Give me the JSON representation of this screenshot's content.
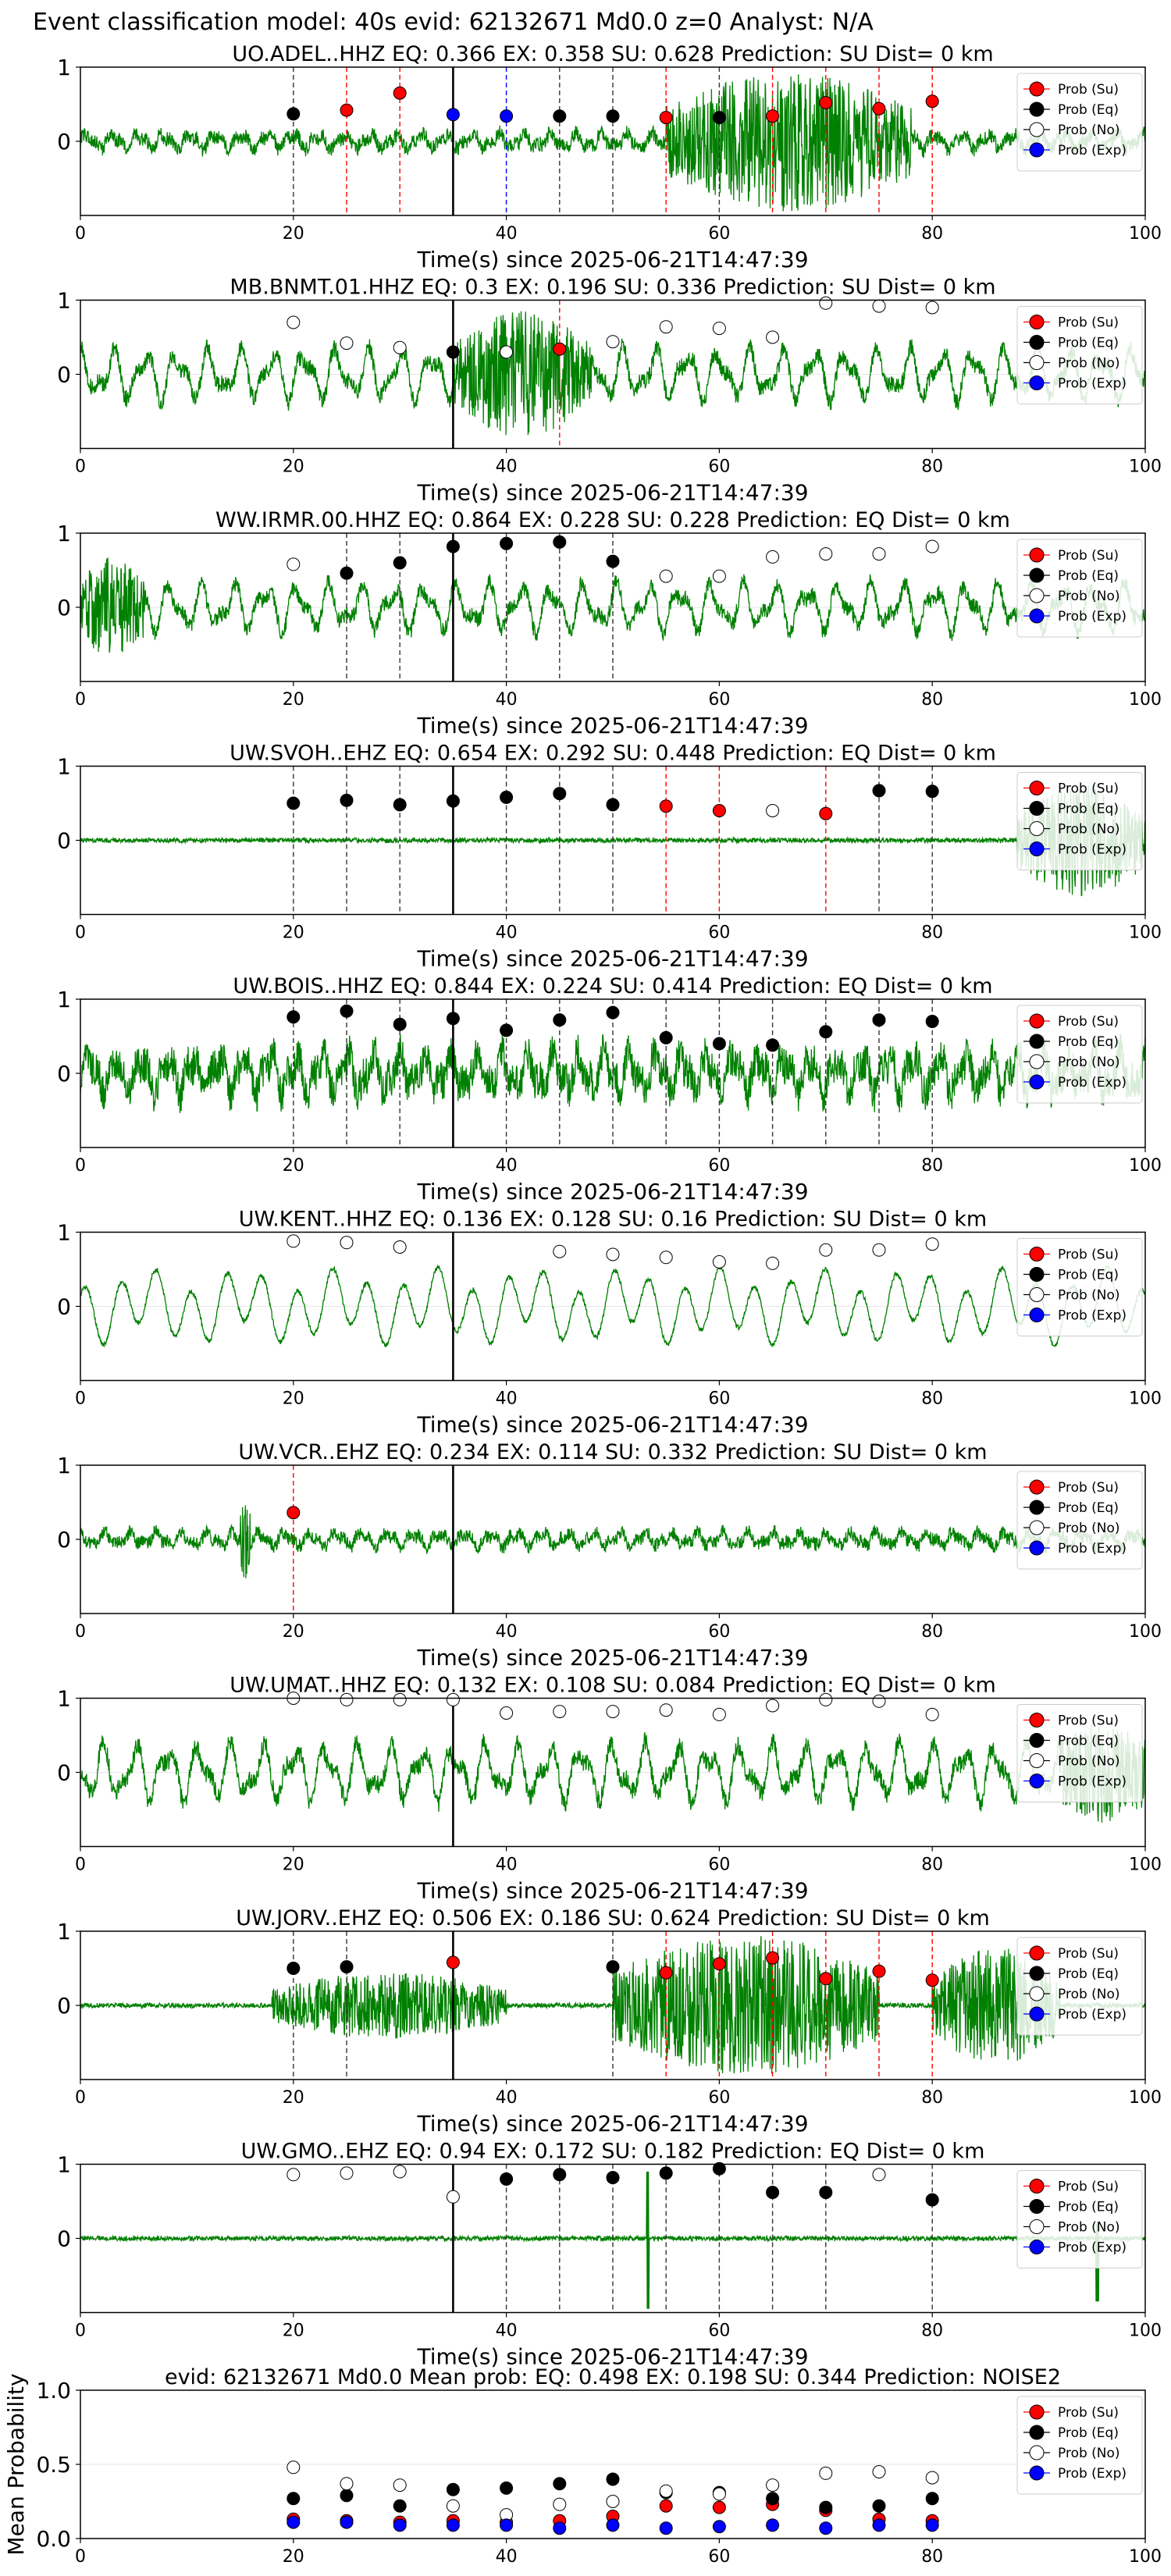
{
  "figure": {
    "suptitle": "Event classification model: 40s evid: 62132671 Md0.0 z=0 Analyst: N/A",
    "xlabel": "Time(s) since 2025-06-21T14:47:39",
    "legend": [
      "Prob (Su)",
      "Prob (Eq)",
      "Prob (No)",
      "Prob (Exp)"
    ],
    "colors": {
      "su": "#ff0000",
      "eq": "#000000",
      "no": "#ffffff",
      "exp": "#0000ff",
      "trace": "#008000",
      "grid": "#e6e6e6"
    },
    "markers": [
      "circle",
      "circle",
      "open-circle",
      "circle"
    ]
  },
  "chart_data": [
    {
      "type": "line",
      "title": "UO.ADEL..HHZ   EQ: 0.366  EX: 0.358  SU: 0.628   Prediction: SU    Dist= 0 km",
      "xlim": [
        0,
        100
      ],
      "ylim": [
        -1,
        1
      ],
      "x_ticks": [
        "0",
        "20",
        "40",
        "60",
        "80",
        "100"
      ],
      "y_ticks": [
        "1",
        "0"
      ],
      "trace": {
        "style": "spiky",
        "amp": 0.22,
        "burst": [
          [
            55,
            78,
            0.95
          ]
        ]
      },
      "pick_line_x": 35,
      "windows": [
        {
          "x": 20,
          "cls": "eq",
          "p": 0.37
        },
        {
          "x": 25,
          "cls": "su",
          "p": 0.42
        },
        {
          "x": 30,
          "cls": "su",
          "p": 0.65
        },
        {
          "x": 35,
          "cls": "exp",
          "p": 0.36
        },
        {
          "x": 40,
          "cls": "exp",
          "p": 0.34
        },
        {
          "x": 45,
          "cls": "eq",
          "p": 0.34
        },
        {
          "x": 50,
          "cls": "eq",
          "p": 0.34
        },
        {
          "x": 55,
          "cls": "su",
          "p": 0.32
        },
        {
          "x": 60,
          "cls": "eq",
          "p": 0.32
        },
        {
          "x": 65,
          "cls": "su",
          "p": 0.34
        },
        {
          "x": 70,
          "cls": "su",
          "p": 0.52
        },
        {
          "x": 75,
          "cls": "su",
          "p": 0.44
        },
        {
          "x": 80,
          "cls": "su",
          "p": 0.54
        }
      ]
    },
    {
      "type": "line",
      "title": "MB.BNMT.01.HHZ   EQ: 0.3  EX: 0.196  SU: 0.336   Prediction: SU    Dist= 0 km",
      "xlim": [
        0,
        100
      ],
      "ylim": [
        -1,
        1
      ],
      "x_ticks": [
        "0",
        "20",
        "40",
        "60",
        "80",
        "100"
      ],
      "y_ticks": [
        "1",
        "0"
      ],
      "trace": {
        "style": "wave",
        "amp": 0.45,
        "burst": [
          [
            35,
            48,
            0.85
          ]
        ]
      },
      "pick_line_x": 35,
      "windows": [
        {
          "x": 20,
          "cls": "no",
          "p": 0.7
        },
        {
          "x": 25,
          "cls": "no",
          "p": 0.42
        },
        {
          "x": 30,
          "cls": "no",
          "p": 0.36
        },
        {
          "x": 35,
          "cls": "eq",
          "p": 0.3
        },
        {
          "x": 40,
          "cls": "no",
          "p": 0.3
        },
        {
          "x": 45,
          "cls": "su",
          "p": 0.34
        },
        {
          "x": 50,
          "cls": "no",
          "p": 0.44
        },
        {
          "x": 55,
          "cls": "no",
          "p": 0.64
        },
        {
          "x": 60,
          "cls": "no",
          "p": 0.62
        },
        {
          "x": 65,
          "cls": "no",
          "p": 0.5
        },
        {
          "x": 70,
          "cls": "no",
          "p": 0.96
        },
        {
          "x": 75,
          "cls": "no",
          "p": 0.92
        },
        {
          "x": 80,
          "cls": "no",
          "p": 0.9
        }
      ]
    },
    {
      "type": "line",
      "title": "WW.IRMR.00.HHZ   EQ: 0.864  EX: 0.228  SU: 0.228   Prediction: EQ    Dist= 0 km",
      "xlim": [
        0,
        100
      ],
      "ylim": [
        -1,
        1
      ],
      "x_ticks": [
        "0",
        "20",
        "40",
        "60",
        "80",
        "100"
      ],
      "y_ticks": [
        "1",
        "0"
      ],
      "trace": {
        "style": "wave",
        "amp": 0.42,
        "burst": [
          [
            0,
            6,
            0.7
          ]
        ]
      },
      "pick_line_x": 35,
      "windows": [
        {
          "x": 20,
          "cls": "no",
          "p": 0.58
        },
        {
          "x": 25,
          "cls": "eq",
          "p": 0.46
        },
        {
          "x": 30,
          "cls": "eq",
          "p": 0.6
        },
        {
          "x": 35,
          "cls": "eq",
          "p": 0.82
        },
        {
          "x": 40,
          "cls": "eq",
          "p": 0.86
        },
        {
          "x": 45,
          "cls": "eq",
          "p": 0.88
        },
        {
          "x": 50,
          "cls": "eq",
          "p": 0.62
        },
        {
          "x": 55,
          "cls": "no",
          "p": 0.42
        },
        {
          "x": 60,
          "cls": "no",
          "p": 0.42
        },
        {
          "x": 65,
          "cls": "no",
          "p": 0.68
        },
        {
          "x": 70,
          "cls": "no",
          "p": 0.72
        },
        {
          "x": 75,
          "cls": "no",
          "p": 0.72
        },
        {
          "x": 80,
          "cls": "no",
          "p": 0.82
        }
      ]
    },
    {
      "type": "line",
      "title": "UW.SVOH..EHZ   EQ: 0.654  EX: 0.292  SU: 0.448   Prediction: EQ    Dist= 0 km",
      "xlim": [
        0,
        100
      ],
      "ylim": [
        -1,
        1
      ],
      "x_ticks": [
        "0",
        "20",
        "40",
        "60",
        "80",
        "100"
      ],
      "y_ticks": [
        "1",
        "0"
      ],
      "trace": {
        "style": "flat",
        "amp": 0.04,
        "burst": [
          [
            88,
            100,
            0.75
          ]
        ]
      },
      "pick_line_x": 35,
      "windows": [
        {
          "x": 20,
          "cls": "eq",
          "p": 0.5
        },
        {
          "x": 25,
          "cls": "eq",
          "p": 0.54
        },
        {
          "x": 30,
          "cls": "eq",
          "p": 0.48
        },
        {
          "x": 35,
          "cls": "eq",
          "p": 0.53
        },
        {
          "x": 40,
          "cls": "eq",
          "p": 0.58
        },
        {
          "x": 45,
          "cls": "eq",
          "p": 0.63
        },
        {
          "x": 50,
          "cls": "eq",
          "p": 0.48
        },
        {
          "x": 55,
          "cls": "su",
          "p": 0.46
        },
        {
          "x": 60,
          "cls": "su",
          "p": 0.4
        },
        {
          "x": 65,
          "cls": "no",
          "p": 0.4
        },
        {
          "x": 70,
          "cls": "su",
          "p": 0.36
        },
        {
          "x": 75,
          "cls": "eq",
          "p": 0.67
        },
        {
          "x": 80,
          "cls": "eq",
          "p": 0.66
        }
      ]
    },
    {
      "type": "line",
      "title": "UW.BOIS..HHZ   EQ: 0.844  EX: 0.224  SU: 0.414   Prediction: EQ    Dist= 0 km",
      "xlim": [
        0,
        100
      ],
      "ylim": [
        -1,
        1
      ],
      "x_ticks": [
        "0",
        "20",
        "40",
        "60",
        "80",
        "100"
      ],
      "y_ticks": [
        "1",
        "0"
      ],
      "trace": {
        "style": "spiky",
        "amp": 0.55,
        "burst": []
      },
      "pick_line_x": 35,
      "windows": [
        {
          "x": 20,
          "cls": "eq",
          "p": 0.76
        },
        {
          "x": 25,
          "cls": "eq",
          "p": 0.84
        },
        {
          "x": 30,
          "cls": "eq",
          "p": 0.66
        },
        {
          "x": 35,
          "cls": "eq",
          "p": 0.74
        },
        {
          "x": 40,
          "cls": "eq",
          "p": 0.58
        },
        {
          "x": 45,
          "cls": "eq",
          "p": 0.72
        },
        {
          "x": 50,
          "cls": "eq",
          "p": 0.82
        },
        {
          "x": 55,
          "cls": "eq",
          "p": 0.48
        },
        {
          "x": 60,
          "cls": "eq",
          "p": 0.4
        },
        {
          "x": 65,
          "cls": "eq",
          "p": 0.38
        },
        {
          "x": 70,
          "cls": "eq",
          "p": 0.56
        },
        {
          "x": 75,
          "cls": "eq",
          "p": 0.72
        },
        {
          "x": 80,
          "cls": "eq",
          "p": 0.7
        }
      ]
    },
    {
      "type": "line",
      "title": "UW.KENT..HHZ   EQ: 0.136  EX: 0.128  SU: 0.16   Prediction: SU    Dist= 0 km",
      "xlim": [
        0,
        100
      ],
      "ylim": [
        -1,
        1
      ],
      "x_ticks": [
        "0",
        "20",
        "40",
        "60",
        "80",
        "100"
      ],
      "y_ticks": [
        "1",
        "0"
      ],
      "trace": {
        "style": "smooth",
        "amp": 0.55,
        "burst": []
      },
      "pick_line_x": 35,
      "windows": [
        {
          "x": 20,
          "cls": "no",
          "p": 0.88
        },
        {
          "x": 25,
          "cls": "no",
          "p": 0.86
        },
        {
          "x": 30,
          "cls": "no",
          "p": 0.8
        },
        {
          "x": 45,
          "cls": "no",
          "p": 0.74
        },
        {
          "x": 50,
          "cls": "no",
          "p": 0.7
        },
        {
          "x": 55,
          "cls": "no",
          "p": 0.66
        },
        {
          "x": 60,
          "cls": "no",
          "p": 0.6
        },
        {
          "x": 65,
          "cls": "no",
          "p": 0.58
        },
        {
          "x": 70,
          "cls": "no",
          "p": 0.76
        },
        {
          "x": 75,
          "cls": "no",
          "p": 0.76
        },
        {
          "x": 80,
          "cls": "no",
          "p": 0.84
        }
      ]
    },
    {
      "type": "line",
      "title": "UW.VCR..EHZ   EQ: 0.234  EX: 0.114  SU: 0.332   Prediction: SU    Dist= 0 km",
      "xlim": [
        0,
        100
      ],
      "ylim": [
        -1,
        1
      ],
      "x_ticks": [
        "0",
        "20",
        "40",
        "60",
        "80",
        "100"
      ],
      "y_ticks": [
        "1",
        "0"
      ],
      "trace": {
        "style": "spiky",
        "amp": 0.2,
        "burst": [
          [
            15,
            16,
            0.6
          ]
        ]
      },
      "pick_line_x": 35,
      "windows": [
        {
          "x": 20,
          "cls": "su",
          "p": 0.36
        }
      ]
    },
    {
      "type": "line",
      "title": "UW.UMAT..HHZ   EQ: 0.132  EX: 0.108  SU: 0.084   Prediction: EQ    Dist= 0 km",
      "xlim": [
        0,
        100
      ],
      "ylim": [
        -1,
        1
      ],
      "x_ticks": [
        "0",
        "20",
        "40",
        "60",
        "80",
        "100"
      ],
      "y_ticks": [
        "1",
        "0"
      ],
      "trace": {
        "style": "wave",
        "amp": 0.5,
        "burst": [
          [
            92,
            100,
            0.7
          ]
        ]
      },
      "pick_line_x": 35,
      "windows": [
        {
          "x": 20,
          "cls": "no",
          "p": 1.0
        },
        {
          "x": 25,
          "cls": "no",
          "p": 0.98
        },
        {
          "x": 30,
          "cls": "no",
          "p": 0.98
        },
        {
          "x": 35,
          "cls": "no",
          "p": 0.98
        },
        {
          "x": 40,
          "cls": "no",
          "p": 0.8
        },
        {
          "x": 45,
          "cls": "no",
          "p": 0.82
        },
        {
          "x": 50,
          "cls": "no",
          "p": 0.82
        },
        {
          "x": 55,
          "cls": "no",
          "p": 0.84
        },
        {
          "x": 60,
          "cls": "no",
          "p": 0.78
        },
        {
          "x": 65,
          "cls": "no",
          "p": 0.9
        },
        {
          "x": 70,
          "cls": "no",
          "p": 0.98
        },
        {
          "x": 75,
          "cls": "no",
          "p": 0.96
        },
        {
          "x": 80,
          "cls": "no",
          "p": 0.78
        }
      ]
    },
    {
      "type": "line",
      "title": "UW.JORV..EHZ   EQ: 0.506  EX: 0.186  SU: 0.624   Prediction: SU    Dist= 0 km",
      "xlim": [
        0,
        100
      ],
      "ylim": [
        -1,
        1
      ],
      "x_ticks": [
        "0",
        "20",
        "40",
        "60",
        "80",
        "100"
      ],
      "y_ticks": [
        "1",
        "0"
      ],
      "trace": {
        "style": "flat",
        "amp": 0.04,
        "burst": [
          [
            18,
            40,
            0.45
          ],
          [
            50,
            75,
            0.95
          ],
          [
            80,
            92,
            0.8
          ]
        ]
      },
      "pick_line_x": 35,
      "windows": [
        {
          "x": 20,
          "cls": "eq",
          "p": 0.5
        },
        {
          "x": 25,
          "cls": "eq",
          "p": 0.52
        },
        {
          "x": 35,
          "cls": "su",
          "p": 0.58
        },
        {
          "x": 50,
          "cls": "eq",
          "p": 0.52
        },
        {
          "x": 55,
          "cls": "su",
          "p": 0.44
        },
        {
          "x": 60,
          "cls": "su",
          "p": 0.56
        },
        {
          "x": 65,
          "cls": "su",
          "p": 0.64
        },
        {
          "x": 70,
          "cls": "su",
          "p": 0.36
        },
        {
          "x": 75,
          "cls": "su",
          "p": 0.46
        },
        {
          "x": 80,
          "cls": "su",
          "p": 0.34
        }
      ]
    },
    {
      "type": "line",
      "title": "UW.GMO..EHZ   EQ: 0.94  EX: 0.172  SU: 0.182   Prediction: EQ    Dist= 0 km",
      "xlim": [
        0,
        100
      ],
      "ylim": [
        -1,
        1
      ],
      "x_ticks": [
        "0",
        "20",
        "40",
        "60",
        "80",
        "100"
      ],
      "y_ticks": [
        "1",
        "0"
      ],
      "trace": {
        "style": "flat",
        "amp": 0.04,
        "spikes": [
          [
            53.3,
            0.9,
            -0.95
          ],
          [
            95.5,
            0.2,
            -0.85
          ]
        ]
      },
      "pick_line_x": 35,
      "windows": [
        {
          "x": 20,
          "cls": "no",
          "p": 0.86
        },
        {
          "x": 25,
          "cls": "no",
          "p": 0.88
        },
        {
          "x": 30,
          "cls": "no",
          "p": 0.9
        },
        {
          "x": 35,
          "cls": "no",
          "p": 0.56
        },
        {
          "x": 40,
          "cls": "eq",
          "p": 0.8
        },
        {
          "x": 45,
          "cls": "eq",
          "p": 0.86
        },
        {
          "x": 50,
          "cls": "eq",
          "p": 0.82
        },
        {
          "x": 55,
          "cls": "eq",
          "p": 0.88
        },
        {
          "x": 60,
          "cls": "eq",
          "p": 0.94
        },
        {
          "x": 65,
          "cls": "eq",
          "p": 0.62
        },
        {
          "x": 70,
          "cls": "eq",
          "p": 0.62
        },
        {
          "x": 75,
          "cls": "no",
          "p": 0.86
        },
        {
          "x": 80,
          "cls": "eq",
          "p": 0.52
        }
      ]
    },
    {
      "type": "scatter",
      "title": "evid: 62132671  Md0.0   Mean prob:   EQ: 0.498  EX: 0.198  SU: 0.344   Prediction: NOISE2",
      "ylabel": "Mean Probability",
      "xlim": [
        0,
        100
      ],
      "ylim": [
        0,
        1
      ],
      "x_ticks": [
        "0",
        "20",
        "40",
        "60",
        "80",
        "100"
      ],
      "y_ticks": [
        "1.0",
        "0.5",
        "0.0"
      ],
      "x": [
        20,
        25,
        30,
        35,
        40,
        45,
        50,
        55,
        60,
        65,
        70,
        75,
        80
      ],
      "series": [
        {
          "name": "Prob (Su)",
          "cls": "su",
          "values": [
            0.13,
            0.12,
            0.11,
            0.12,
            0.11,
            0.12,
            0.15,
            0.22,
            0.21,
            0.23,
            0.19,
            0.13,
            0.12
          ]
        },
        {
          "name": "Prob (Eq)",
          "cls": "eq",
          "values": [
            0.27,
            0.29,
            0.22,
            0.33,
            0.34,
            0.37,
            0.4,
            0.31,
            0.31,
            0.27,
            0.21,
            0.22,
            0.27
          ]
        },
        {
          "name": "Prob (No)",
          "cls": "no",
          "values": [
            0.48,
            0.37,
            0.36,
            0.22,
            0.16,
            0.23,
            0.25,
            0.32,
            0.3,
            0.36,
            0.44,
            0.45,
            0.41
          ]
        },
        {
          "name": "Prob (Exp)",
          "cls": "exp",
          "values": [
            0.11,
            0.11,
            0.09,
            0.09,
            0.09,
            0.07,
            0.09,
            0.07,
            0.08,
            0.09,
            0.07,
            0.09,
            0.09
          ]
        }
      ]
    }
  ]
}
